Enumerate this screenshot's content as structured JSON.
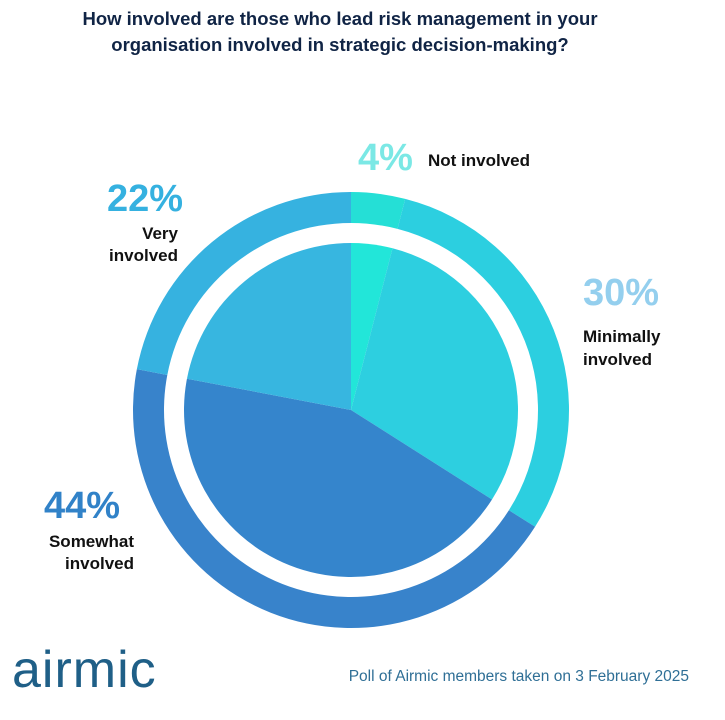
{
  "chart_data": {
    "type": "pie",
    "title": "How involved are those who lead risk management in your organisation involved in strategic decision-making?",
    "categories": [
      "Not involved",
      "Minimally involved",
      "Somewhat involved",
      "Very involved"
    ],
    "values": [
      4,
      30,
      44,
      22
    ],
    "labels": [
      {
        "pct": "4%",
        "lines": [
          "Not involved"
        ]
      },
      {
        "pct": "30%",
        "lines": [
          "Minimally",
          "involved"
        ]
      },
      {
        "pct": "44%",
        "lines": [
          "Somewhat",
          "involved"
        ]
      },
      {
        "pct": "22%",
        "lines": [
          "Very",
          "involved"
        ]
      }
    ],
    "colors": {
      "outer": [
        "#25dfd6",
        "#2ccfe0",
        "#3883cb",
        "#36b2e0"
      ],
      "inner": [
        "#22e6d9",
        "#2dcfe0",
        "#3585cc",
        "#37b6e0"
      ],
      "pct_text": [
        "#7be8e5",
        "#94cfee",
        "#3182c8",
        "#35b1e0"
      ]
    }
  },
  "brand": "airmic",
  "footer": "Poll of Airmic members taken on 3 February 2025"
}
